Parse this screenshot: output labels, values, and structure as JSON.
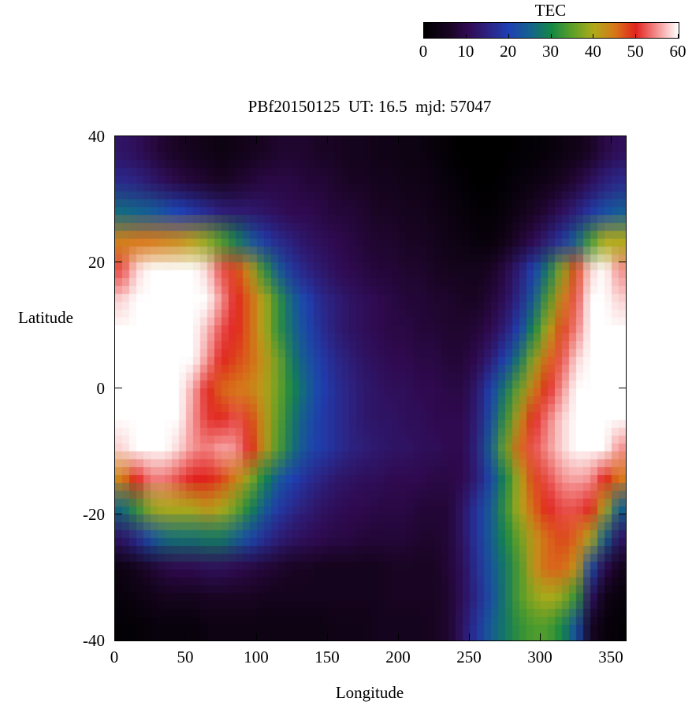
{
  "chart_data": {
    "type": "heatmap",
    "title": "PBf20150125  UT: 16.5  mjd: 57047",
    "xlabel": "Longitude",
    "ylabel": "Latitude",
    "xlim": [
      0,
      360
    ],
    "ylim": [
      -40,
      40
    ],
    "x_ticks": [
      0,
      50,
      100,
      150,
      200,
      250,
      300,
      350
    ],
    "y_ticks": [
      -40,
      -20,
      0,
      20,
      40
    ],
    "colorbar": {
      "label": "TEC",
      "min": 0,
      "max": 60,
      "ticks": [
        0,
        10,
        20,
        30,
        40,
        50,
        60
      ]
    },
    "colormap_stops": [
      {
        "t": 0.0,
        "rgb": [
          0,
          0,
          0
        ]
      },
      {
        "t": 0.1,
        "rgb": [
          25,
          5,
          35
        ]
      },
      {
        "t": 0.1667,
        "rgb": [
          48,
          10,
          80
        ]
      },
      {
        "t": 0.25,
        "rgb": [
          45,
          35,
          130
        ]
      },
      {
        "t": 0.3333,
        "rgb": [
          30,
          65,
          180
        ]
      },
      {
        "t": 0.42,
        "rgb": [
          20,
          100,
          140
        ]
      },
      {
        "t": 0.5,
        "rgb": [
          20,
          135,
          70
        ]
      },
      {
        "t": 0.58,
        "rgb": [
          90,
          160,
          40
        ]
      },
      {
        "t": 0.6667,
        "rgb": [
          175,
          170,
          25
        ]
      },
      {
        "t": 0.75,
        "rgb": [
          215,
          120,
          25
        ]
      },
      {
        "t": 0.8333,
        "rgb": [
          225,
          35,
          30
        ]
      },
      {
        "t": 0.92,
        "rgb": [
          245,
          150,
          150
        ]
      },
      {
        "t": 1.0,
        "rgb": [
          255,
          255,
          255
        ]
      }
    ],
    "grid": {
      "lon_min": 0,
      "lon_step": 10,
      "lat_max": 40,
      "lat_step": 5,
      "values": [
        [
          12,
          11,
          9,
          7,
          6,
          5,
          4,
          3,
          4,
          5,
          6,
          7,
          7,
          7,
          6,
          6,
          5,
          5,
          4,
          4,
          3,
          3,
          2,
          1,
          0,
          0,
          0,
          0,
          1,
          1,
          2,
          3,
          4,
          6,
          9,
          11
        ],
        [
          16,
          15,
          13,
          11,
          9,
          8,
          7,
          6,
          7,
          8,
          9,
          9,
          9,
          8,
          8,
          7,
          6,
          6,
          5,
          5,
          4,
          4,
          3,
          2,
          1,
          0,
          0,
          1,
          2,
          3,
          4,
          6,
          8,
          11,
          14,
          16
        ],
        [
          26,
          25,
          24,
          22,
          20,
          18,
          16,
          14,
          13,
          13,
          12,
          11,
          10,
          10,
          9,
          8,
          8,
          7,
          6,
          6,
          5,
          5,
          4,
          3,
          2,
          1,
          1,
          2,
          4,
          6,
          8,
          11,
          14,
          18,
          22,
          24
        ],
        [
          44,
          45,
          45,
          44,
          43,
          41,
          38,
          34,
          29,
          24,
          19,
          16,
          14,
          12,
          11,
          10,
          9,
          8,
          7,
          7,
          6,
          6,
          5,
          4,
          3,
          2,
          2,
          4,
          7,
          10,
          14,
          18,
          25,
          33,
          40,
          40
        ],
        [
          52,
          58,
          62,
          64,
          64,
          62,
          58,
          52,
          48,
          42,
          32,
          24,
          18,
          15,
          13,
          11,
          10,
          9,
          8,
          8,
          7,
          7,
          6,
          5,
          5,
          5,
          6,
          9,
          14,
          20,
          28,
          38,
          48,
          58,
          62,
          55
        ],
        [
          58,
          62,
          65,
          66,
          66,
          64,
          60,
          55,
          50,
          46,
          40,
          32,
          25,
          20,
          16,
          14,
          12,
          11,
          10,
          9,
          8,
          8,
          7,
          7,
          6,
          6,
          8,
          11,
          16,
          24,
          34,
          44,
          52,
          60,
          64,
          58
        ],
        [
          60,
          64,
          66,
          66,
          65,
          62,
          57,
          52,
          50,
          46,
          40,
          32,
          26,
          21,
          17,
          14,
          12,
          11,
          10,
          9,
          9,
          8,
          8,
          7,
          7,
          8,
          10,
          14,
          20,
          30,
          40,
          48,
          54,
          62,
          66,
          60
        ],
        [
          62,
          65,
          66,
          66,
          64,
          60,
          55,
          50,
          48,
          46,
          42,
          36,
          28,
          23,
          19,
          16,
          14,
          12,
          11,
          10,
          10,
          9,
          9,
          8,
          8,
          10,
          14,
          20,
          28,
          38,
          46,
          52,
          58,
          64,
          66,
          62
        ],
        [
          63,
          66,
          66,
          65,
          62,
          56,
          50,
          46,
          45,
          44,
          41,
          36,
          30,
          25,
          20,
          17,
          15,
          13,
          12,
          11,
          11,
          10,
          10,
          9,
          9,
          13,
          20,
          28,
          36,
          44,
          50,
          55,
          60,
          65,
          66,
          63
        ],
        [
          62,
          65,
          66,
          65,
          60,
          55,
          51,
          50,
          52,
          48,
          42,
          35,
          28,
          23,
          19,
          17,
          15,
          13,
          12,
          12,
          11,
          11,
          10,
          10,
          10,
          14,
          22,
          32,
          42,
          50,
          54,
          58,
          62,
          66,
          66,
          62
        ],
        [
          58,
          62,
          64,
          62,
          58,
          55,
          54,
          56,
          55,
          50,
          42,
          34,
          27,
          22,
          19,
          17,
          15,
          14,
          13,
          12,
          12,
          11,
          11,
          10,
          10,
          15,
          25,
          36,
          46,
          52,
          55,
          58,
          62,
          65,
          64,
          55
        ],
        [
          44,
          50,
          54,
          54,
          52,
          50,
          50,
          48,
          44,
          38,
          30,
          24,
          20,
          17,
          15,
          13,
          12,
          11,
          11,
          10,
          10,
          10,
          9,
          9,
          10,
          14,
          21,
          30,
          40,
          48,
          52,
          55,
          56,
          55,
          50,
          45
        ],
        [
          26,
          32,
          38,
          40,
          40,
          40,
          42,
          40,
          36,
          30,
          24,
          19,
          16,
          14,
          12,
          11,
          10,
          10,
          9,
          9,
          9,
          8,
          8,
          8,
          12,
          18,
          24,
          32,
          40,
          46,
          50,
          52,
          52,
          50,
          40,
          25
        ],
        [
          12,
          16,
          22,
          26,
          27,
          27,
          28,
          28,
          25,
          21,
          17,
          14,
          12,
          11,
          10,
          9,
          9,
          8,
          8,
          8,
          8,
          7,
          7,
          8,
          12,
          18,
          24,
          30,
          36,
          42,
          46,
          48,
          46,
          40,
          25,
          12
        ],
        [
          3,
          5,
          7,
          9,
          10,
          10,
          11,
          11,
          10,
          9,
          8,
          7,
          6,
          6,
          5,
          5,
          5,
          5,
          5,
          6,
          6,
          6,
          6,
          8,
          11,
          17,
          23,
          28,
          34,
          42,
          46,
          46,
          42,
          22,
          10,
          5
        ],
        [
          2,
          3,
          4,
          5,
          5,
          5,
          6,
          6,
          6,
          6,
          5,
          5,
          5,
          5,
          5,
          5,
          5,
          5,
          5,
          6,
          6,
          6,
          6,
          7,
          11,
          16,
          22,
          28,
          34,
          38,
          40,
          38,
          32,
          12,
          4,
          2
        ],
        [
          1,
          1,
          2,
          2,
          2,
          2,
          3,
          3,
          3,
          3,
          3,
          3,
          3,
          3,
          3,
          4,
          4,
          4,
          5,
          5,
          5,
          5,
          6,
          7,
          12,
          18,
          24,
          28,
          32,
          34,
          34,
          30,
          22,
          6,
          2,
          1
        ]
      ]
    }
  }
}
